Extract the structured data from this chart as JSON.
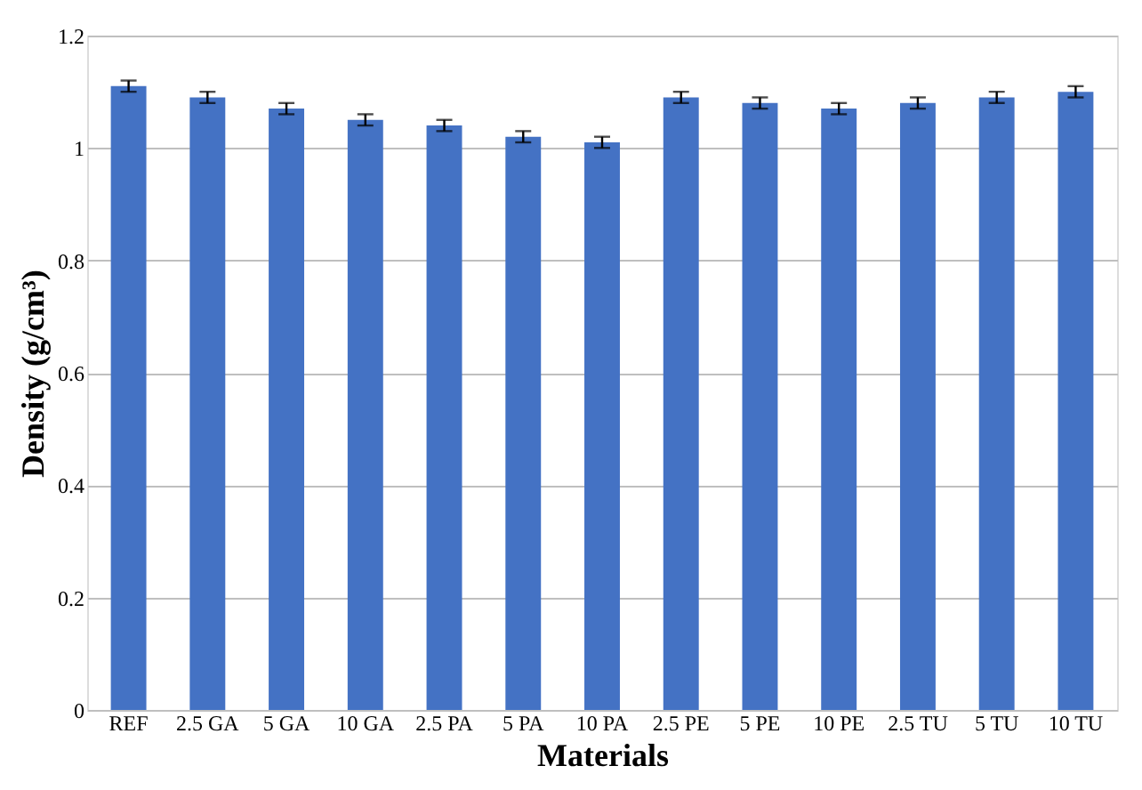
{
  "chart_data": {
    "type": "bar",
    "xlabel": "Materials",
    "ylabel": "Density (g/cm³)",
    "categories": [
      "REF",
      "2.5 GA",
      "5 GA",
      "10 GA",
      "2.5 PA",
      "5 PA",
      "10 PA",
      "2.5 PE",
      "5 PE",
      "10 PE",
      "2.5 TU",
      "5 TU",
      "10 TU"
    ],
    "values": [
      1.11,
      1.09,
      1.07,
      1.05,
      1.04,
      1.02,
      1.01,
      1.09,
      1.08,
      1.07,
      1.08,
      1.09,
      1.1
    ],
    "errors": [
      0.01,
      0.01,
      0.01,
      0.01,
      0.01,
      0.01,
      0.01,
      0.01,
      0.01,
      0.01,
      0.01,
      0.01,
      0.01
    ],
    "color": "#4472c4",
    "ylim": [
      0,
      1.2
    ],
    "yticks": [
      0,
      0.2,
      0.4,
      0.6,
      0.8,
      1,
      1.2
    ],
    "grid": "y"
  }
}
